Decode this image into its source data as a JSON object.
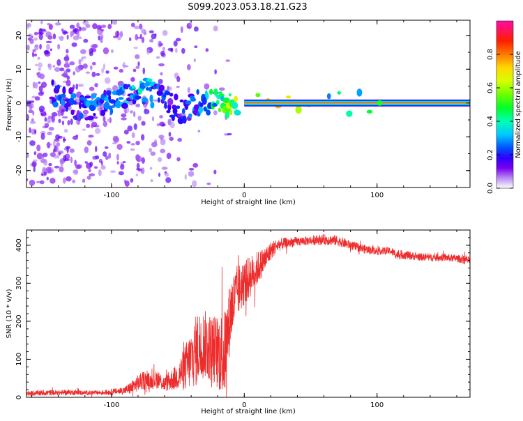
{
  "title": "S099.2023.053.18.21.G23",
  "chart_data": [
    {
      "type": "heatmap",
      "xlabel": "Height of straight line (km)",
      "ylabel": "Frequency (Hz)",
      "xlim": [
        -164,
        170
      ],
      "ylim": [
        -25,
        24.5
      ],
      "x_ticks": [
        -100,
        0,
        100
      ],
      "y_ticks": [
        -20,
        -10,
        0,
        10,
        20
      ],
      "grid": false,
      "colorbar": {
        "label": "Normalized spectral amplitude",
        "ticks": [
          "0.0",
          "0.2",
          "0.4",
          "0.6",
          "0.8"
        ],
        "range": [
          0,
          1
        ],
        "colormap": "gist_ncar-like (white, purple, blue, cyan, green, yellow, orange, red, magenta)"
      },
      "features": {
        "stable_carrier": {
          "x_start": 0,
          "x_end": 170,
          "frequency": 0,
          "amplitude": 0.95
        },
        "scattered_low_amplitude_noise": {
          "x_start": -164,
          "x_end": -10,
          "frequency_spread": 24
        },
        "ridge_points": [
          {
            "x": -145,
            "freq": 3,
            "amp": 0.25
          },
          {
            "x": -135,
            "freq": 2,
            "amp": 0.3
          },
          {
            "x": -125,
            "freq": -2,
            "amp": 0.25
          },
          {
            "x": -115,
            "freq": -1,
            "amp": 0.3
          },
          {
            "x": -105,
            "freq": 0,
            "amp": 0.3
          },
          {
            "x": -95,
            "freq": 2,
            "amp": 0.3
          },
          {
            "x": -85,
            "freq": 3,
            "amp": 0.35
          },
          {
            "x": -75,
            "freq": 4,
            "amp": 0.4
          },
          {
            "x": -65,
            "freq": 2,
            "amp": 0.3
          },
          {
            "x": -55,
            "freq": -1,
            "amp": 0.25
          },
          {
            "x": -45,
            "freq": -2,
            "amp": 0.25
          },
          {
            "x": -35,
            "freq": 0,
            "amp": 0.3
          },
          {
            "x": -25,
            "freq": 0.5,
            "amp": 0.45
          },
          {
            "x": -15,
            "freq": -0.5,
            "amp": 0.6
          },
          {
            "x": -5,
            "freq": 0,
            "amp": 0.8
          },
          {
            "x": 102,
            "freq": 0,
            "amp": 0.5
          }
        ]
      }
    },
    {
      "type": "line",
      "xlabel": "Height of straight line (km)",
      "ylabel": "SNR (10 * v/v)",
      "xlim": [
        -164,
        170
      ],
      "ylim": [
        0,
        440
      ],
      "x_ticks": [
        -100,
        0,
        100
      ],
      "y_ticks": [
        0,
        100,
        200,
        300,
        400
      ],
      "grid": false,
      "series": [
        {
          "color": "#ee2c2c",
          "x": [
            -164,
            -150,
            -140,
            -130,
            -120,
            -110,
            -100,
            -90,
            -85,
            -80,
            -75,
            -70,
            -65,
            -60,
            -55,
            -50,
            -45,
            -40,
            -35,
            -30,
            -25,
            -20,
            -15,
            -10,
            -5,
            0,
            5,
            10,
            15,
            20,
            25,
            30,
            40,
            50,
            60,
            70,
            80,
            90,
            100,
            110,
            115,
            120,
            130,
            140,
            150,
            160,
            170
          ],
          "mean": [
            10,
            12,
            12,
            13,
            12,
            12,
            14,
            18,
            25,
            38,
            45,
            42,
            48,
            35,
            45,
            55,
            75,
            100,
            130,
            140,
            130,
            120,
            110,
            230,
            280,
            300,
            320,
            340,
            360,
            385,
            400,
            405,
            410,
            412,
            415,
            412,
            400,
            390,
            385,
            385,
            375,
            375,
            370,
            368,
            368,
            365,
            360
          ],
          "noise_amplitude": [
            6,
            8,
            7,
            7,
            6,
            6,
            8,
            10,
            18,
            22,
            25,
            20,
            25,
            20,
            28,
            35,
            60,
            80,
            100,
            90,
            90,
            100,
            120,
            90,
            70,
            60,
            55,
            45,
            35,
            25,
            18,
            15,
            12,
            12,
            14,
            14,
            12,
            12,
            10,
            10,
            12,
            12,
            10,
            10,
            10,
            10,
            10
          ]
        }
      ]
    }
  ]
}
